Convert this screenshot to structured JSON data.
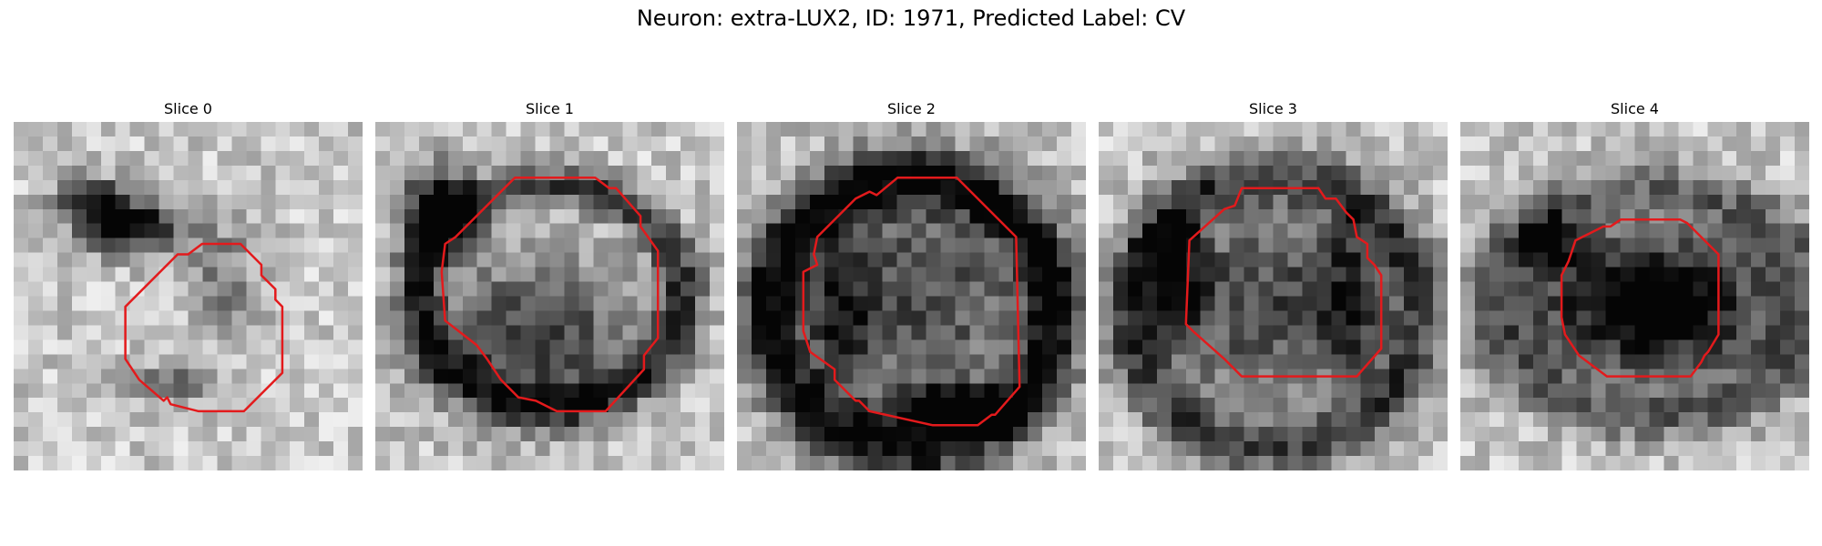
{
  "title": "Neuron: extra-LUX2, ID: 1971, Predicted Label: CV",
  "colors": {
    "contour": "#e31a1c",
    "background": "#ffffff"
  },
  "grid_size": 24,
  "panels": [
    {
      "label": "Slice 0",
      "seed": 11,
      "dark_blobs": [
        [
          0.33,
          0.3,
          0.18,
          0.1,
          0.85
        ],
        [
          0.22,
          0.22,
          0.12,
          0.08,
          0.6
        ],
        [
          0.6,
          0.45,
          0.12,
          0.22,
          0.3
        ],
        [
          0.45,
          0.75,
          0.15,
          0.06,
          0.35
        ]
      ],
      "contour": [
        [
          0.54,
          0.35
        ],
        [
          0.65,
          0.35
        ],
        [
          0.71,
          0.41
        ],
        [
          0.71,
          0.44
        ],
        [
          0.75,
          0.48
        ],
        [
          0.75,
          0.51
        ],
        [
          0.77,
          0.53
        ],
        [
          0.77,
          0.54
        ],
        [
          0.77,
          0.72
        ],
        [
          0.66,
          0.83
        ],
        [
          0.53,
          0.83
        ],
        [
          0.45,
          0.81
        ],
        [
          0.44,
          0.79
        ],
        [
          0.43,
          0.8
        ],
        [
          0.36,
          0.74
        ],
        [
          0.32,
          0.68
        ],
        [
          0.32,
          0.53
        ],
        [
          0.47,
          0.38
        ],
        [
          0.5,
          0.38
        ]
      ]
    },
    {
      "label": "Slice 1",
      "seed": 23,
      "dark_blobs": [
        [
          0.18,
          0.25,
          0.12,
          0.15,
          0.9
        ],
        [
          0.45,
          0.62,
          0.38,
          0.28,
          0.55
        ]
      ],
      "rings": [
        [
          0.5,
          0.5,
          0.38,
          0.32,
          0.06,
          0.55
        ]
      ],
      "contour": [
        [
          0.4,
          0.16
        ],
        [
          0.63,
          0.16
        ],
        [
          0.67,
          0.19
        ],
        [
          0.69,
          0.19
        ],
        [
          0.76,
          0.27
        ],
        [
          0.76,
          0.3
        ],
        [
          0.81,
          0.37
        ],
        [
          0.81,
          0.62
        ],
        [
          0.77,
          0.67
        ],
        [
          0.77,
          0.71
        ],
        [
          0.66,
          0.83
        ],
        [
          0.52,
          0.83
        ],
        [
          0.46,
          0.8
        ],
        [
          0.41,
          0.79
        ],
        [
          0.36,
          0.74
        ],
        [
          0.32,
          0.68
        ],
        [
          0.29,
          0.64
        ],
        [
          0.2,
          0.57
        ],
        [
          0.19,
          0.43
        ],
        [
          0.2,
          0.35
        ],
        [
          0.23,
          0.33
        ]
      ]
    },
    {
      "label": "Slice 2",
      "seed": 37,
      "dark_blobs": [
        [
          0.5,
          0.5,
          0.5,
          0.45,
          0.5
        ],
        [
          0.6,
          0.82,
          0.2,
          0.08,
          0.8
        ],
        [
          0.3,
          0.55,
          0.1,
          0.25,
          0.4
        ]
      ],
      "rings": [
        [
          0.5,
          0.55,
          0.41,
          0.39,
          0.07,
          0.65
        ]
      ],
      "contour": [
        [
          0.46,
          0.16
        ],
        [
          0.63,
          0.16
        ],
        [
          0.8,
          0.33
        ],
        [
          0.81,
          0.76
        ],
        [
          0.74,
          0.84
        ],
        [
          0.73,
          0.84
        ],
        [
          0.69,
          0.87
        ],
        [
          0.56,
          0.87
        ],
        [
          0.38,
          0.83
        ],
        [
          0.35,
          0.8
        ],
        [
          0.34,
          0.8
        ],
        [
          0.28,
          0.74
        ],
        [
          0.28,
          0.71
        ],
        [
          0.21,
          0.66
        ],
        [
          0.19,
          0.6
        ],
        [
          0.19,
          0.43
        ],
        [
          0.23,
          0.41
        ],
        [
          0.22,
          0.38
        ],
        [
          0.23,
          0.33
        ],
        [
          0.32,
          0.24
        ],
        [
          0.34,
          0.22
        ],
        [
          0.38,
          0.2
        ],
        [
          0.4,
          0.21
        ]
      ]
    },
    {
      "label": "Slice 3",
      "seed": 51,
      "dark_blobs": [
        [
          0.5,
          0.53,
          0.45,
          0.4,
          0.5
        ],
        [
          0.22,
          0.45,
          0.12,
          0.22,
          0.6
        ],
        [
          0.72,
          0.5,
          0.1,
          0.3,
          0.4
        ]
      ],
      "rings": [
        [
          0.5,
          0.55,
          0.42,
          0.39,
          0.06,
          0.45
        ]
      ],
      "contour": [
        [
          0.41,
          0.19
        ],
        [
          0.63,
          0.19
        ],
        [
          0.65,
          0.22
        ],
        [
          0.68,
          0.22
        ],
        [
          0.71,
          0.26
        ],
        [
          0.73,
          0.28
        ],
        [
          0.74,
          0.33
        ],
        [
          0.77,
          0.35
        ],
        [
          0.77,
          0.39
        ],
        [
          0.79,
          0.41
        ],
        [
          0.81,
          0.44
        ],
        [
          0.81,
          0.65
        ],
        [
          0.74,
          0.73
        ],
        [
          0.63,
          0.73
        ],
        [
          0.41,
          0.73
        ],
        [
          0.36,
          0.68
        ],
        [
          0.27,
          0.6
        ],
        [
          0.25,
          0.58
        ],
        [
          0.26,
          0.34
        ],
        [
          0.36,
          0.25
        ],
        [
          0.39,
          0.24
        ]
      ]
    },
    {
      "label": "Slice 4",
      "seed": 67,
      "dark_blobs": [
        [
          0.55,
          0.52,
          0.4,
          0.25,
          1.0
        ],
        [
          0.25,
          0.35,
          0.12,
          0.1,
          0.5
        ]
      ],
      "rings": [
        [
          0.55,
          0.52,
          0.45,
          0.33,
          0.08,
          0.35
        ]
      ],
      "contour": [
        [
          0.51,
          0.28
        ],
        [
          0.63,
          0.28
        ],
        [
          0.65,
          0.29
        ],
        [
          0.74,
          0.38
        ],
        [
          0.74,
          0.61
        ],
        [
          0.71,
          0.66
        ],
        [
          0.7,
          0.67
        ],
        [
          0.69,
          0.69
        ],
        [
          0.66,
          0.73
        ],
        [
          0.42,
          0.73
        ],
        [
          0.34,
          0.67
        ],
        [
          0.3,
          0.61
        ],
        [
          0.29,
          0.56
        ],
        [
          0.29,
          0.44
        ],
        [
          0.31,
          0.4
        ],
        [
          0.32,
          0.37
        ],
        [
          0.33,
          0.34
        ],
        [
          0.35,
          0.33
        ],
        [
          0.37,
          0.32
        ],
        [
          0.39,
          0.31
        ],
        [
          0.41,
          0.3
        ],
        [
          0.43,
          0.3
        ],
        [
          0.46,
          0.28
        ],
        [
          0.47,
          0.28
        ]
      ]
    }
  ]
}
